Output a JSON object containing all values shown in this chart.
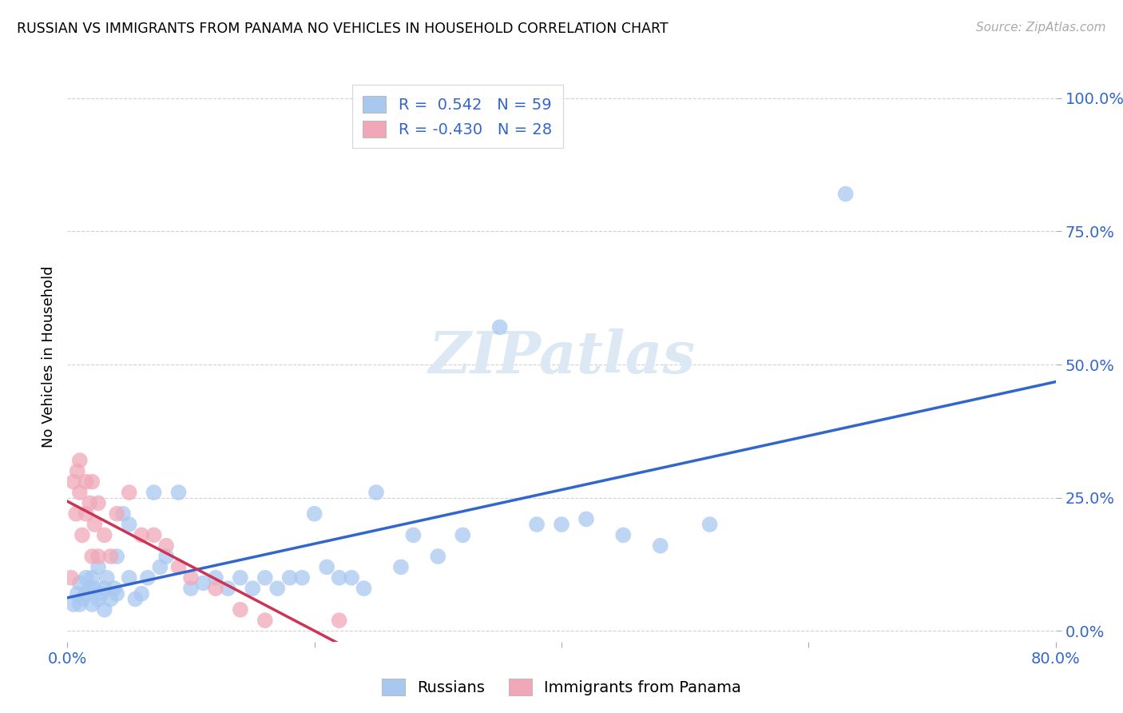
{
  "title": "RUSSIAN VS IMMIGRANTS FROM PANAMA NO VEHICLES IN HOUSEHOLD CORRELATION CHART",
  "source": "Source: ZipAtlas.com",
  "ylabel_label": "No Vehicles in Household",
  "xlim": [
    0.0,
    0.8
  ],
  "ylim": [
    0.0,
    1.05
  ],
  "russian_color": "#a8c8f0",
  "panama_color": "#f0a8b8",
  "russian_line_color": "#3366cc",
  "panama_line_color": "#cc3355",
  "legend_r_russian": "0.542",
  "legend_n_russian": "59",
  "legend_r_panama": "-0.430",
  "legend_n_panama": "28",
  "watermark": "ZIPatlas",
  "russians_x": [
    0.005,
    0.008,
    0.01,
    0.01,
    0.012,
    0.015,
    0.015,
    0.018,
    0.02,
    0.02,
    0.022,
    0.025,
    0.025,
    0.028,
    0.03,
    0.03,
    0.032,
    0.035,
    0.038,
    0.04,
    0.04,
    0.045,
    0.05,
    0.05,
    0.055,
    0.06,
    0.065,
    0.07,
    0.075,
    0.08,
    0.09,
    0.1,
    0.11,
    0.12,
    0.13,
    0.14,
    0.15,
    0.16,
    0.17,
    0.18,
    0.19,
    0.2,
    0.21,
    0.22,
    0.23,
    0.24,
    0.25,
    0.27,
    0.28,
    0.3,
    0.32,
    0.35,
    0.38,
    0.4,
    0.42,
    0.45,
    0.48,
    0.52,
    0.63
  ],
  "russians_y": [
    0.05,
    0.07,
    0.05,
    0.09,
    0.06,
    0.07,
    0.1,
    0.08,
    0.05,
    0.1,
    0.08,
    0.06,
    0.12,
    0.07,
    0.04,
    0.08,
    0.1,
    0.06,
    0.08,
    0.07,
    0.14,
    0.22,
    0.1,
    0.2,
    0.06,
    0.07,
    0.1,
    0.26,
    0.12,
    0.14,
    0.26,
    0.08,
    0.09,
    0.1,
    0.08,
    0.1,
    0.08,
    0.1,
    0.08,
    0.1,
    0.1,
    0.22,
    0.12,
    0.1,
    0.1,
    0.08,
    0.26,
    0.12,
    0.18,
    0.14,
    0.18,
    0.57,
    0.2,
    0.2,
    0.21,
    0.18,
    0.16,
    0.2,
    0.82
  ],
  "panama_x": [
    0.003,
    0.005,
    0.007,
    0.008,
    0.01,
    0.01,
    0.012,
    0.015,
    0.015,
    0.018,
    0.02,
    0.02,
    0.022,
    0.025,
    0.025,
    0.03,
    0.035,
    0.04,
    0.05,
    0.06,
    0.07,
    0.08,
    0.09,
    0.1,
    0.12,
    0.14,
    0.16,
    0.22
  ],
  "panama_y": [
    0.1,
    0.28,
    0.22,
    0.3,
    0.26,
    0.32,
    0.18,
    0.28,
    0.22,
    0.24,
    0.14,
    0.28,
    0.2,
    0.24,
    0.14,
    0.18,
    0.14,
    0.22,
    0.26,
    0.18,
    0.18,
    0.16,
    0.12,
    0.1,
    0.08,
    0.04,
    0.02,
    0.02
  ]
}
